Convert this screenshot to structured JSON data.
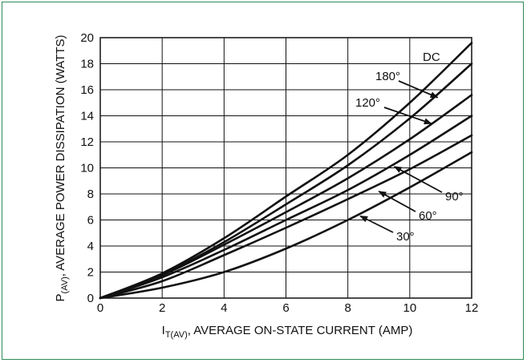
{
  "chart_data": {
    "type": "line",
    "xlabel": {
      "main": "I",
      "sub": "T(AV)",
      "rest": ", AVERAGE ON-STATE CURRENT (AMP)"
    },
    "ylabel": {
      "main": "P",
      "sub": "(AV)",
      "rest": ", AVERAGE POWER DISSIPATION (WATTS)"
    },
    "xlim": [
      0,
      12
    ],
    "ylim": [
      0,
      20
    ],
    "x_ticks": [
      0,
      2,
      4,
      6,
      8,
      10,
      12
    ],
    "y_ticks": [
      0,
      2,
      4,
      6,
      8,
      10,
      12,
      14,
      16,
      18,
      20
    ],
    "grid": true,
    "series": [
      {
        "name": "DC",
        "x": [
          0,
          2,
          4,
          6,
          8,
          10,
          12
        ],
        "values": [
          0,
          1.9,
          4.6,
          7.8,
          11.0,
          15.0,
          19.6
        ]
      },
      {
        "name": "180°",
        "x": [
          0,
          2,
          4,
          6,
          8,
          10,
          12
        ],
        "values": [
          0,
          1.8,
          4.3,
          7.2,
          10.2,
          13.8,
          18.0
        ]
      },
      {
        "name": "120°",
        "x": [
          0,
          2,
          4,
          6,
          8,
          10,
          12
        ],
        "values": [
          0,
          1.75,
          4.1,
          6.6,
          9.2,
          12.2,
          15.6
        ]
      },
      {
        "name": "90°",
        "x": [
          0,
          2,
          4,
          6,
          8,
          10,
          12
        ],
        "values": [
          0,
          1.6,
          3.7,
          6.0,
          8.3,
          11.0,
          14.0
        ]
      },
      {
        "name": "60°",
        "x": [
          0,
          2,
          4,
          6,
          8,
          10,
          12
        ],
        "values": [
          0,
          1.3,
          3.3,
          5.4,
          7.6,
          9.9,
          12.5
        ]
      },
      {
        "name": "30°",
        "x": [
          0,
          2,
          4,
          6,
          8,
          10,
          12
        ],
        "values": [
          0,
          0.8,
          2.0,
          3.8,
          6.0,
          8.5,
          11.2
        ]
      }
    ],
    "annotations": [
      {
        "text": "DC",
        "series": "DC"
      },
      {
        "text": "180°",
        "series": "180°",
        "arrow_to": [
          10.9,
          15.4
        ]
      },
      {
        "text": "120°",
        "series": "120°",
        "arrow_to": [
          10.7,
          13.4
        ]
      },
      {
        "text": "90°",
        "series": "90°",
        "arrow_to": [
          9.5,
          10.1
        ]
      },
      {
        "text": "60°",
        "series": "60°",
        "arrow_to": [
          9.0,
          8.2
        ]
      },
      {
        "text": "30°",
        "series": "30°",
        "arrow_to": [
          8.4,
          6.3
        ]
      }
    ]
  }
}
